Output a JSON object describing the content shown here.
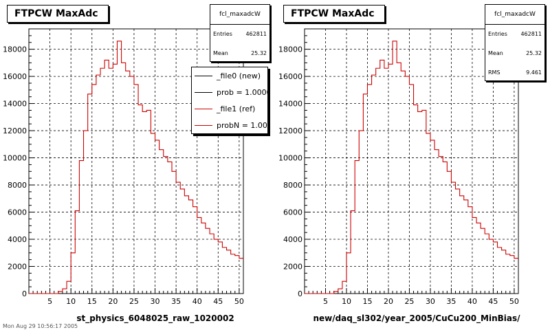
{
  "footer_text": "Mon Aug 29 10:56:17 2005",
  "chart_data": [
    {
      "type": "histogram",
      "title": "FTPCW MaxAdc",
      "xlabel": "st_physics_6048025_raw_1020002",
      "ylabel": "",
      "xlim": [
        0,
        51
      ],
      "ylim": [
        0,
        19500
      ],
      "x_ticks": [
        5,
        10,
        15,
        20,
        25,
        30,
        35,
        40,
        45,
        50
      ],
      "y_ticks": [
        0,
        2000,
        4000,
        6000,
        8000,
        10000,
        12000,
        14000,
        16000,
        18000
      ],
      "grid": true,
      "stats": {
        "name": "fcl_maxadcW",
        "rows": [
          {
            "label": "Entries",
            "value": "462811"
          },
          {
            "label": "Mean",
            "value": "25.32"
          }
        ]
      },
      "legend": {
        "placement": "top-right",
        "entries": [
          {
            "label": "_file0 (new)",
            "color": "#000000"
          },
          {
            "label": "prob = 1.000000",
            "color": "#000000"
          },
          {
            "label": "_file1 (ref)",
            "color": "#cc0000"
          },
          {
            "label": "probN = 1.000000",
            "color": "#cc0000"
          }
        ]
      },
      "series": [
        {
          "name": "_file1 (ref)",
          "color": "#cc0000",
          "bin_edges_start": 0,
          "bin_width": 1,
          "values": [
            0,
            0,
            0,
            0,
            0,
            0,
            0,
            150,
            350,
            900,
            3000,
            6100,
            9800,
            12000,
            14700,
            15400,
            16100,
            16600,
            17200,
            16600,
            16900,
            18600,
            17000,
            16400,
            16000,
            15400,
            13900,
            13400,
            13500,
            11800,
            11300,
            10600,
            10100,
            9700,
            9000,
            8200,
            7700,
            7200,
            6900,
            6400,
            5600,
            5200,
            4800,
            4400,
            4000,
            3800,
            3400,
            3200,
            2900,
            2800,
            2600,
            2400
          ]
        }
      ]
    },
    {
      "type": "histogram",
      "title": "FTPCW MaxAdc",
      "xlabel": "new/daq_sl302/year_2005/CuCu200_MinBias/",
      "ylabel": "",
      "xlim": [
        0,
        51
      ],
      "ylim": [
        0,
        19500
      ],
      "x_ticks": [
        5,
        10,
        15,
        20,
        25,
        30,
        35,
        40,
        45,
        50
      ],
      "y_ticks": [
        0,
        2000,
        4000,
        6000,
        8000,
        10000,
        12000,
        14000,
        16000,
        18000
      ],
      "grid": true,
      "stats": {
        "name": "fcl_maxadcW",
        "rows": [
          {
            "label": "Entries",
            "value": "462811"
          },
          {
            "label": "Mean",
            "value": "25.32"
          },
          {
            "label": "RMS",
            "value": "9.461"
          }
        ]
      },
      "series": [
        {
          "name": "",
          "color": "#cc0000",
          "bin_edges_start": 0,
          "bin_width": 1,
          "values": [
            0,
            0,
            0,
            0,
            0,
            0,
            0,
            150,
            350,
            900,
            3000,
            6100,
            9800,
            12000,
            14700,
            15400,
            16100,
            16600,
            17200,
            16600,
            16900,
            18600,
            17000,
            16400,
            16000,
            15400,
            13900,
            13400,
            13500,
            11800,
            11300,
            10600,
            10100,
            9700,
            9000,
            8200,
            7700,
            7200,
            6900,
            6400,
            5600,
            5200,
            4800,
            4400,
            4000,
            3800,
            3400,
            3200,
            2900,
            2800,
            2600,
            2400
          ]
        }
      ]
    }
  ]
}
